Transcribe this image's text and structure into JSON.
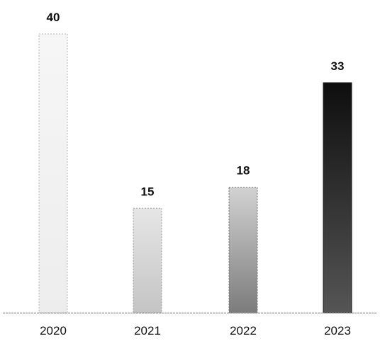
{
  "chart_data": {
    "type": "bar",
    "categories": [
      "2020",
      "2021",
      "2022",
      "2023"
    ],
    "values": [
      40,
      15,
      18,
      33
    ],
    "value_labels": [
      "40",
      "15",
      "18",
      "33"
    ],
    "title": "",
    "xlabel": "",
    "ylabel": "",
    "ylim": [
      0,
      40
    ],
    "grid": false,
    "legend": "none",
    "bar_styles": [
      {
        "top": "#f6f6f6",
        "bottom": "#ededed",
        "border": "#b5b5b5",
        "dashed": true
      },
      {
        "top": "#e6e6e6",
        "bottom": "#c4c4c4",
        "border": "#9c9c9c",
        "dashed": true
      },
      {
        "top": "#d2d2d2",
        "bottom": "#7c7c7c",
        "border": "#6a6a6a",
        "dashed": true
      },
      {
        "top": "#0e0e0e",
        "bottom": "#555555",
        "border": "#1a1a1a",
        "dashed": false
      }
    ],
    "axis_color": "#9a9a9a"
  }
}
